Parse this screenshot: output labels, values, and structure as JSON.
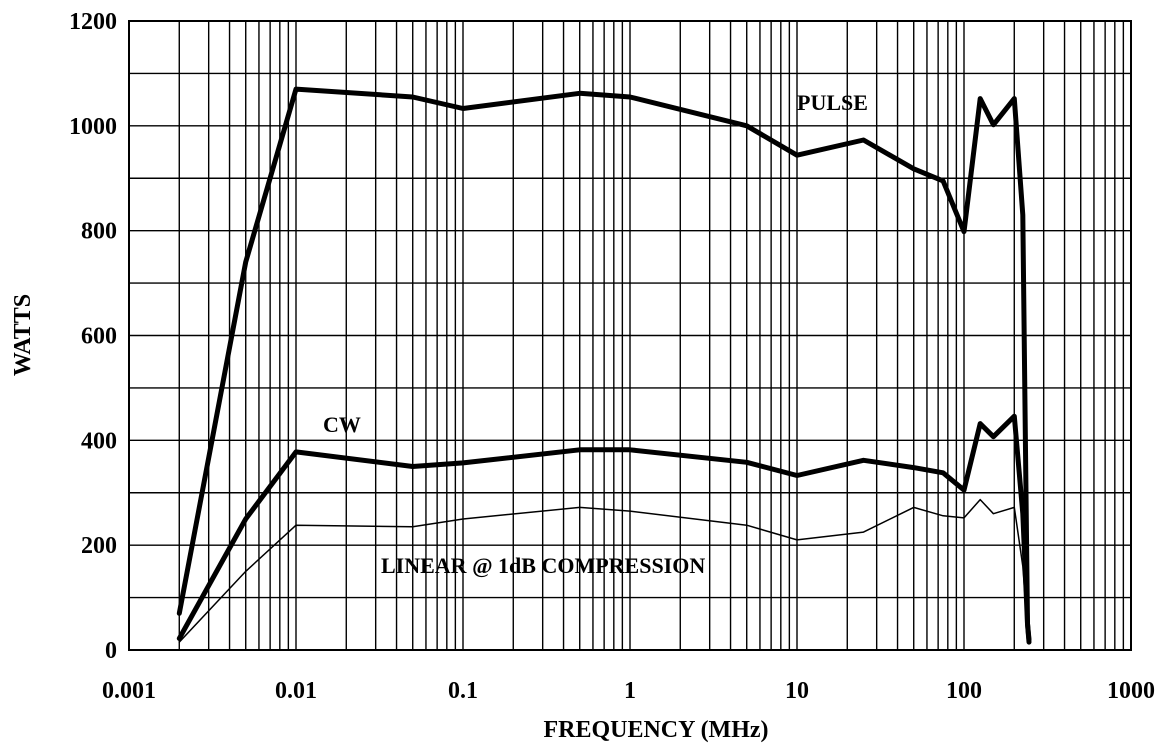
{
  "chart_data": {
    "type": "line",
    "title": "",
    "xlabel": "FREQUENCY (MHz)",
    "ylabel": "WATTS",
    "x_scale": "log",
    "xlim": [
      0.001,
      1000
    ],
    "ylim": [
      0,
      1200
    ],
    "x_ticks": [
      0.001,
      0.01,
      0.1,
      1,
      10,
      100,
      1000
    ],
    "x_tick_labels": [
      "0.001",
      "0.01",
      "0.1",
      "1",
      "10",
      "100",
      "1000"
    ],
    "y_ticks": [
      0,
      200,
      400,
      600,
      800,
      1000,
      1200
    ],
    "y_tick_labels": [
      "0",
      "200",
      "400",
      "600",
      "800",
      "1000",
      "1200"
    ],
    "grid": true,
    "series": [
      {
        "key": "pulse",
        "label": "PULSE",
        "style": "thick",
        "points": [
          [
            0.002,
            70
          ],
          [
            0.005,
            740
          ],
          [
            0.01,
            1070
          ],
          [
            0.05,
            1055
          ],
          [
            0.1,
            1033
          ],
          [
            0.5,
            1062
          ],
          [
            1,
            1055
          ],
          [
            5,
            1000
          ],
          [
            10,
            944
          ],
          [
            25,
            973
          ],
          [
            50,
            918
          ],
          [
            75,
            895
          ],
          [
            100,
            798
          ],
          [
            125,
            1052
          ],
          [
            150,
            1002
          ],
          [
            200,
            1052
          ],
          [
            225,
            830
          ],
          [
            240,
            50
          ],
          [
            245,
            15
          ]
        ]
      },
      {
        "key": "cw",
        "label": "CW",
        "style": "thick",
        "points": [
          [
            0.002,
            22
          ],
          [
            0.005,
            250
          ],
          [
            0.01,
            378
          ],
          [
            0.05,
            350
          ],
          [
            0.1,
            357
          ],
          [
            0.5,
            382
          ],
          [
            1,
            382
          ],
          [
            5,
            358
          ],
          [
            10,
            333
          ],
          [
            25,
            362
          ],
          [
            50,
            348
          ],
          [
            75,
            338
          ],
          [
            100,
            305
          ],
          [
            125,
            432
          ],
          [
            150,
            407
          ],
          [
            200,
            446
          ],
          [
            225,
            260
          ],
          [
            240,
            50
          ],
          [
            245,
            20
          ]
        ]
      },
      {
        "key": "linear",
        "label": "LINEAR @ 1dB COMPRESSION",
        "style": "thin",
        "points": [
          [
            0.002,
            15
          ],
          [
            0.005,
            150
          ],
          [
            0.01,
            238
          ],
          [
            0.05,
            235
          ],
          [
            0.1,
            250
          ],
          [
            0.5,
            272
          ],
          [
            1,
            265
          ],
          [
            5,
            238
          ],
          [
            10,
            210
          ],
          [
            25,
            225
          ],
          [
            50,
            272
          ],
          [
            75,
            256
          ],
          [
            100,
            252
          ],
          [
            125,
            287
          ],
          [
            150,
            260
          ],
          [
            200,
            272
          ],
          [
            225,
            160
          ],
          [
            240,
            40
          ]
        ]
      }
    ]
  }
}
